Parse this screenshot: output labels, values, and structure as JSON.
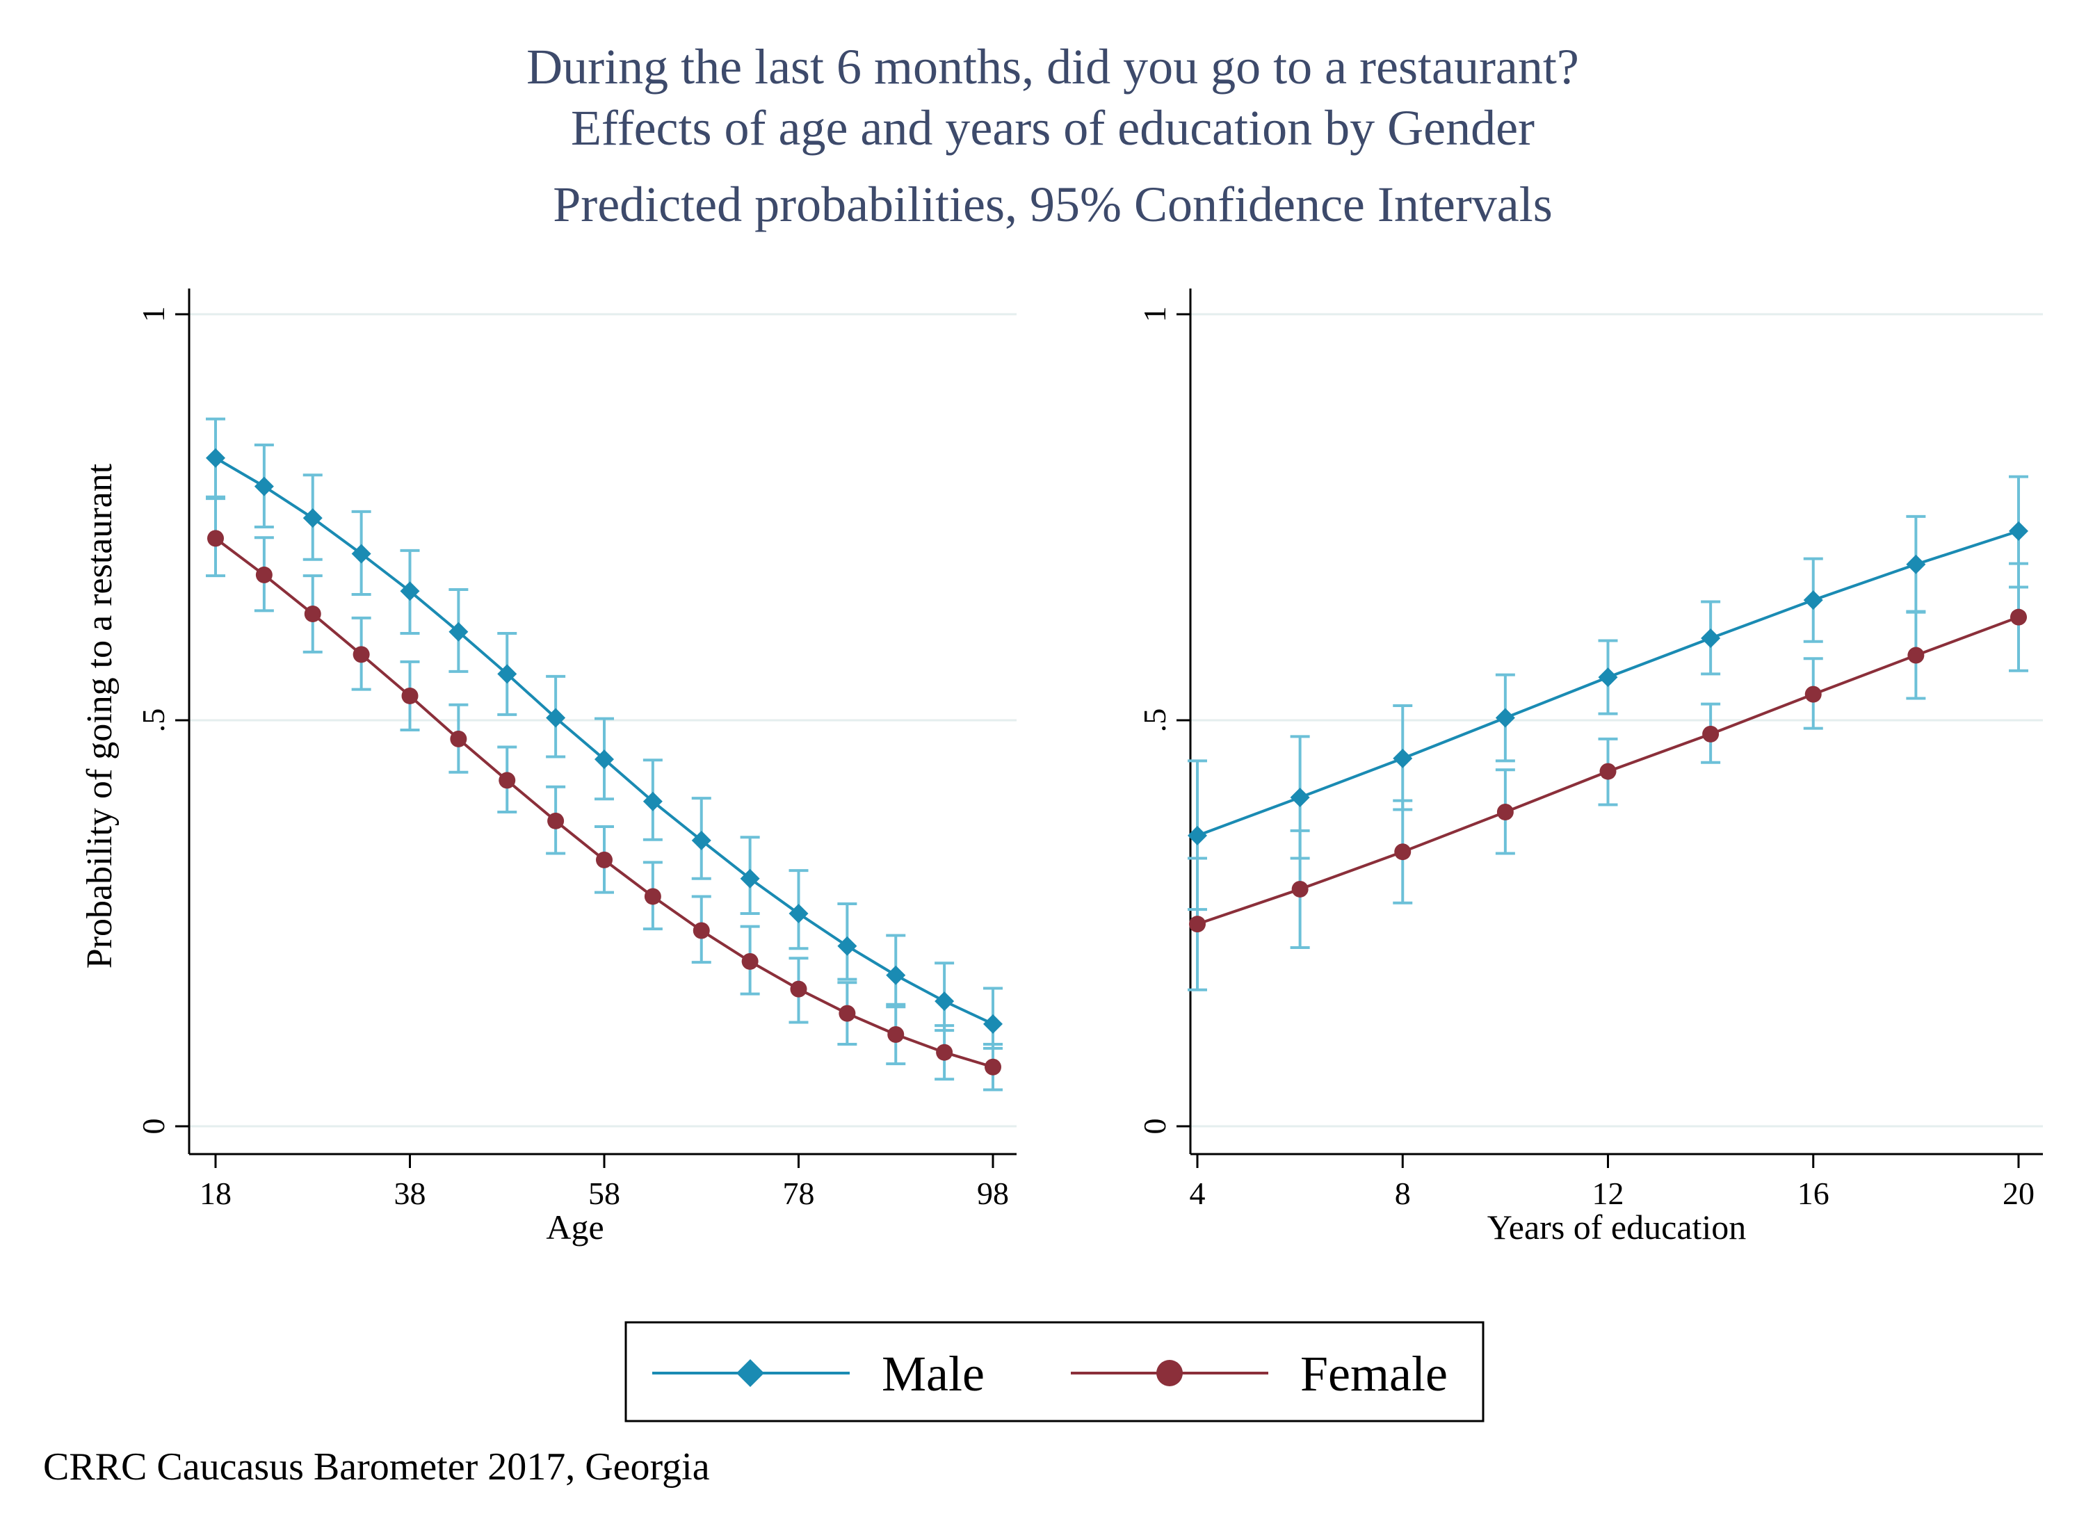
{
  "header": {
    "title_line1": "During the last 6 months, did you go to a restaurant?",
    "title_line2": "Effects of age and years of education by Gender",
    "subtitle": "Predicted probabilities, 95% Confidence Intervals"
  },
  "ylabel": "Probability of going to a restaurant",
  "legend": {
    "items": [
      "Male",
      "Female"
    ],
    "placement": "bottom-center"
  },
  "note": "CRRC Caucasus Barometer 2017, Georgia",
  "colors": {
    "male": "#1a8bb3",
    "female": "#8b2f3a",
    "ci": "#6cc0d8",
    "grid": "#e4eeee",
    "title": "#3d4a6b"
  },
  "chart_data": [
    {
      "type": "line",
      "xlabel": "Age",
      "ylabel": "Probability of going to a restaurant",
      "xlim": [
        18,
        98
      ],
      "ylim": [
        0,
        1
      ],
      "x_ticks": [
        18,
        38,
        58,
        78,
        98
      ],
      "y_ticks": [
        {
          "value": 0,
          "label": "0"
        },
        {
          "value": 0.5,
          "label": ".5"
        },
        {
          "value": 1,
          "label": "1"
        }
      ],
      "grid": true,
      "x": [
        18,
        23,
        28,
        33,
        38,
        43,
        48,
        53,
        58,
        63,
        68,
        73,
        78,
        83,
        88,
        93,
        98
      ],
      "series": [
        {
          "name": "Male",
          "marker": "diamond",
          "values": [
            0.823,
            0.788,
            0.749,
            0.705,
            0.659,
            0.609,
            0.557,
            0.503,
            0.452,
            0.4,
            0.352,
            0.305,
            0.262,
            0.222,
            0.186,
            0.154,
            0.126
          ],
          "ci_low": [
            0.775,
            0.738,
            0.698,
            0.655,
            0.607,
            0.56,
            0.507,
            0.455,
            0.403,
            0.353,
            0.305,
            0.262,
            0.219,
            0.181,
            0.147,
            0.118,
            0.096
          ],
          "ci_high": [
            0.871,
            0.839,
            0.802,
            0.757,
            0.709,
            0.661,
            0.607,
            0.554,
            0.502,
            0.451,
            0.404,
            0.356,
            0.315,
            0.274,
            0.235,
            0.201,
            0.17
          ]
        },
        {
          "name": "Female",
          "marker": "circle",
          "values": [
            0.724,
            0.679,
            0.631,
            0.581,
            0.53,
            0.477,
            0.426,
            0.376,
            0.328,
            0.283,
            0.241,
            0.203,
            0.169,
            0.139,
            0.113,
            0.091,
            0.073
          ],
          "ci_low": [
            0.678,
            0.635,
            0.584,
            0.538,
            0.488,
            0.436,
            0.387,
            0.336,
            0.288,
            0.243,
            0.202,
            0.163,
            0.128,
            0.101,
            0.077,
            0.058,
            0.045
          ],
          "ci_high": [
            0.773,
            0.725,
            0.678,
            0.626,
            0.572,
            0.519,
            0.467,
            0.418,
            0.369,
            0.325,
            0.283,
            0.246,
            0.207,
            0.177,
            0.15,
            0.124,
            0.101
          ]
        }
      ]
    },
    {
      "type": "line",
      "xlabel": "Years of education",
      "ylabel": "",
      "xlim": [
        4,
        20
      ],
      "ylim": [
        0,
        1
      ],
      "x_ticks": [
        4,
        8,
        12,
        16,
        20
      ],
      "y_ticks": [
        {
          "value": 0,
          "label": "0"
        },
        {
          "value": 0.5,
          "label": ".5"
        },
        {
          "value": 1,
          "label": "1"
        }
      ],
      "grid": true,
      "x": [
        4,
        6,
        8,
        10,
        12,
        14,
        16,
        18,
        20
      ],
      "series": [
        {
          "name": "Male",
          "marker": "diamond",
          "values": [
            0.358,
            0.405,
            0.453,
            0.503,
            0.553,
            0.601,
            0.648,
            0.692,
            0.733
          ],
          "ci_low": [
            0.267,
            0.33,
            0.39,
            0.45,
            0.508,
            0.557,
            0.597,
            0.634,
            0.664
          ],
          "ci_high": [
            0.45,
            0.48,
            0.518,
            0.556,
            0.598,
            0.646,
            0.699,
            0.751,
            0.8
          ]
        },
        {
          "name": "Female",
          "marker": "circle",
          "values": [
            0.249,
            0.292,
            0.338,
            0.387,
            0.437,
            0.483,
            0.532,
            0.58,
            0.627
          ],
          "ci_low": [
            0.168,
            0.22,
            0.275,
            0.336,
            0.396,
            0.448,
            0.49,
            0.527,
            0.561
          ],
          "ci_high": [
            0.33,
            0.364,
            0.401,
            0.439,
            0.477,
            0.52,
            0.576,
            0.633,
            0.693
          ]
        }
      ]
    }
  ]
}
